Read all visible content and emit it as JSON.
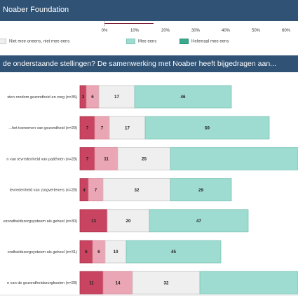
{
  "header": {
    "title": "Noaber Foundation"
  },
  "legend": [
    {
      "name": "Niet mee oneens, niet mee eens",
      "color": "#efefef"
    },
    {
      "name": "Mee eens",
      "color": "#9edbd0"
    },
    {
      "name": "Helemaal mee eens",
      "color": "#3aa98c"
    }
  ],
  "top_axis_ticks": [
    "0%",
    "10%",
    "20%",
    "30%",
    "40%",
    "50%",
    "60%"
  ],
  "section": {
    "title": "de onderstaande stellingen? De samenwerking met Noaber heeft bijgedragen aan..."
  },
  "chart_data": {
    "type": "bar",
    "orientation": "horizontal",
    "stacked": true,
    "categories": [
      "sten rondom gezondheid en zorg (n=35)",
      "...het toenemen van gezondheid (n=29)",
      "n van tevredenheid van patiënten (n=28)",
      "tevredenheid van zorgverleners (n=28)",
      "ezondheidszorgsysteem als geheel (n=30)",
      "ondheidszorgsysteem als geheel (n=31)",
      "e van de gezondheidszorgkosten (n=28)"
    ],
    "series": [
      {
        "name": "",
        "color": "#c94460",
        "values": [
          3,
          7,
          7,
          4,
          13,
          6,
          11
        ]
      },
      {
        "name": "",
        "color": "#eaa6b4",
        "values": [
          6,
          7,
          11,
          7,
          0,
          6,
          14
        ]
      },
      {
        "name": "Niet mee oneens, niet mee eens",
        "color": "#efefef",
        "values": [
          17,
          17,
          25,
          32,
          20,
          10,
          32
        ]
      },
      {
        "name": "Mee eens",
        "color": "#9edbd0",
        "values": [
          46,
          59,
          null,
          29,
          47,
          45,
          null
        ]
      }
    ],
    "percent_scale": true
  },
  "colors": {
    "header": "#2f5275",
    "accent": "#3aa98c"
  }
}
